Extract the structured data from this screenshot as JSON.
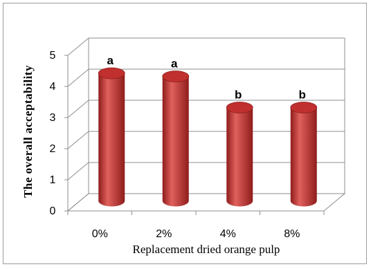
{
  "chart_data": {
    "type": "bar",
    "variant": "3d-cylinder",
    "categories": [
      "0%",
      "2%",
      "4%",
      "8%"
    ],
    "values": [
      4.1,
      4.0,
      3.0,
      3.0
    ],
    "data_labels": [
      "a",
      "a",
      "b",
      "b"
    ],
    "ylabel": "The overall acceptability",
    "xlabel": "Replacement dried orange pulp",
    "ylim": [
      0,
      5
    ],
    "yticks": [
      "0",
      "1",
      "2",
      "3",
      "4",
      "5"
    ],
    "grid": true,
    "legend": "none",
    "colors": {
      "bar": "#c0302e",
      "bar_dark": "#8e1d1c",
      "bar_light": "#e0605c",
      "grid": "#8c8c8c",
      "frame": "#9a9a9a"
    }
  }
}
